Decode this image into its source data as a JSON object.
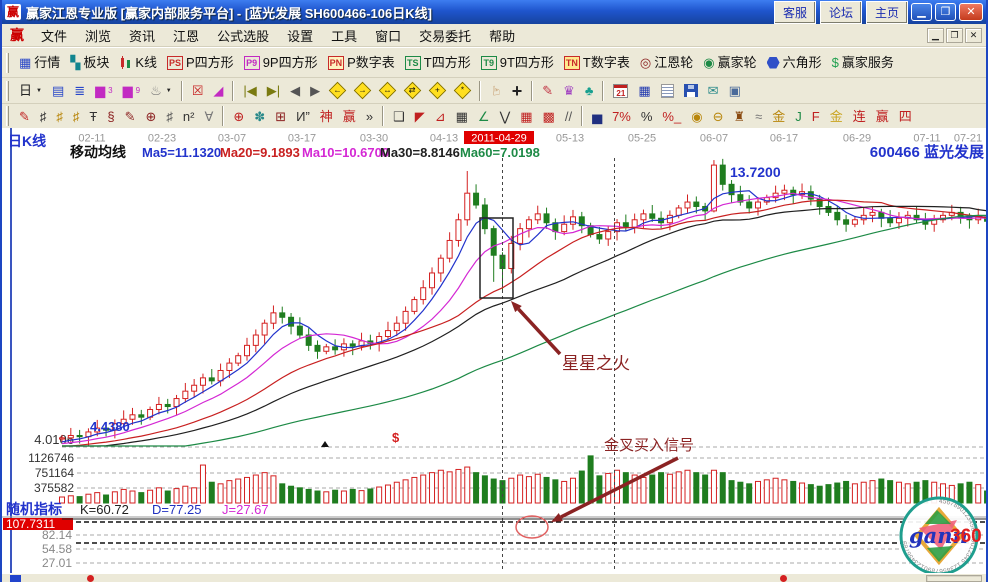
{
  "window": {
    "title": "赢家江恩专业版 [赢家内部服务平台] - [蓝光发展  SH600466-106日K线]",
    "titlebar_buttons": [
      "客服",
      "论坛",
      "主页"
    ],
    "minimize_glyph": "▁",
    "maximize_glyph": "❐",
    "close_glyph": "✕"
  },
  "menu": {
    "logo": "赢",
    "items": [
      "文件",
      "浏览",
      "资讯",
      "江恩",
      "公式选股",
      "设置",
      "工具",
      "窗口",
      "交易委托",
      "帮助"
    ],
    "child_controls": [
      "▁",
      "❐",
      "✕"
    ]
  },
  "toolbar1": {
    "items": [
      {
        "name": "quotes-button",
        "label": "行情",
        "icon": "quotes-table-icon",
        "glyph": "▦",
        "color": "#2947c8"
      },
      {
        "name": "sectors-button",
        "label": "板块",
        "icon": "sectors-icon",
        "glyph": "▚",
        "color": "#11858f"
      },
      {
        "name": "kline-button",
        "label": "K线",
        "icon": "kline-icon",
        "type": "kline"
      },
      {
        "name": "p-square-button",
        "label": "P四方形",
        "icon": "ps-icon",
        "box": "PS",
        "color": "#c82a2a"
      },
      {
        "name": "p9-square-button",
        "label": "9P四方形",
        "icon": "p9-icon",
        "box": "P9",
        "color": "#c22ac2"
      },
      {
        "name": "p-number-button",
        "label": "P数字表",
        "icon": "pn-icon",
        "box": "PN",
        "color": "#c82a2a",
        "bg": "#fff3c0"
      },
      {
        "name": "t-square-button",
        "label": "T四方形",
        "icon": "ts-icon",
        "box": "TS",
        "color": "#1d8a46"
      },
      {
        "name": "t9-square-button",
        "label": "9T四方形",
        "icon": "t9-icon",
        "box": "T9",
        "color": "#1d8a46"
      },
      {
        "name": "t-number-button",
        "label": "T数字表",
        "icon": "tn-icon",
        "box": "TN",
        "color": "#c82a2a",
        "bg": "#ffe98e"
      },
      {
        "name": "gann-wheel-button",
        "label": "江恩轮",
        "icon": "gann-wheel-icon",
        "glyph": "◎",
        "color": "#8a1f1f"
      },
      {
        "name": "winner-wheel-button",
        "label": "赢家轮",
        "icon": "winner-wheel-icon",
        "glyph": "◉",
        "color": "#1d8a46"
      },
      {
        "name": "hexagon-button",
        "label": "六角形",
        "icon": "hexagon-icon",
        "type": "hex"
      },
      {
        "name": "winner-service-button",
        "label": "赢家服务",
        "icon": "dollar-icon",
        "glyph": "$",
        "color": "#21a050"
      }
    ]
  },
  "toolbar2": {
    "items": [
      {
        "name": "chart-type-button",
        "icon": "candle-period-icon",
        "glyph": "日",
        "color": "#222",
        "caret": true
      },
      {
        "name": "window-layout-button",
        "icon": "tiled-windows-icon",
        "glyph": "▤",
        "color": "#2947c8"
      },
      {
        "name": "info-list-button",
        "icon": "list-icon",
        "glyph": "≣",
        "color": "#2947c8"
      },
      {
        "name": "bars3-button",
        "icon": "bars3-icon",
        "glyph": "▆",
        "sub": "3",
        "color": "#c22ac2"
      },
      {
        "name": "bars9-button",
        "icon": "bars9-icon",
        "glyph": "▆",
        "sub": "9",
        "color": "#c22ac2"
      },
      {
        "name": "flask-button",
        "icon": "flask-icon",
        "glyph": "♨",
        "color": "#777",
        "caret": true
      },
      {
        "sep": true
      },
      {
        "name": "compare-button",
        "icon": "cross-red-icon",
        "glyph": "☒",
        "color": "#c82a2a"
      },
      {
        "name": "color-chart-button",
        "icon": "color-chart-icon",
        "glyph": "◢",
        "color": "#c22ac2"
      },
      {
        "sep": true
      },
      {
        "name": "first-page-button",
        "icon": "skip-start-icon",
        "glyph": "|◀",
        "color": "#7a7a10"
      },
      {
        "name": "last-page-button",
        "icon": "skip-end-icon",
        "glyph": "▶|",
        "color": "#7a7a10"
      },
      {
        "name": "prev-button",
        "icon": "back-icon",
        "glyph": "◀",
        "color": "#555"
      },
      {
        "name": "next-button",
        "icon": "forward-icon",
        "glyph": "▶",
        "color": "#555"
      },
      {
        "name": "shift-left-button",
        "icon": "diamond-left-icon",
        "type": "diamond",
        "inner": "←"
      },
      {
        "name": "shift-right-button",
        "icon": "diamond-right-icon",
        "type": "diamond",
        "inner": "→"
      },
      {
        "name": "expand-h-button",
        "icon": "diamond-expand-icon",
        "type": "diamond",
        "inner": "↔"
      },
      {
        "name": "compress-h-button",
        "icon": "diamond-compress-icon",
        "type": "diamond",
        "inner": "⇄"
      },
      {
        "name": "zoom-all-button",
        "icon": "diamond-plus-icon",
        "type": "diamond",
        "inner": "+"
      },
      {
        "name": "reset-view-button",
        "icon": "diamond-star-icon",
        "type": "diamond",
        "inner": "*"
      },
      {
        "sep": true
      },
      {
        "name": "hand-tool-button",
        "icon": "hand-icon",
        "glyph": "☞",
        "color": "#b07030",
        "rot": -90
      },
      {
        "name": "crosshair-button",
        "icon": "crosshair-icon",
        "glyph": "+",
        "color": "#222",
        "big": true
      },
      {
        "sep": true
      },
      {
        "name": "draw-pen-button",
        "icon": "pen-icon",
        "glyph": "✎",
        "color": "#c03040"
      },
      {
        "name": "magic-tool-button",
        "icon": "purple-tool-icon",
        "glyph": "♛",
        "color": "#a040c0"
      },
      {
        "name": "pattern-tool-button",
        "icon": "teal-pattern-icon",
        "glyph": "♣",
        "color": "#18a090"
      },
      {
        "sep": true
      },
      {
        "name": "calendar-button",
        "icon": "calendar-21-icon",
        "type": "calendar",
        "text": "21"
      },
      {
        "name": "calculator-button",
        "icon": "calculator-icon",
        "glyph": "▦",
        "color": "#2038b0"
      },
      {
        "name": "notes-button",
        "icon": "notepad-icon",
        "type": "note"
      },
      {
        "name": "save-button",
        "icon": "floppy-icon",
        "type": "save"
      },
      {
        "name": "mail-button",
        "icon": "mail-icon",
        "glyph": "✉",
        "color": "#2a8a8a"
      },
      {
        "name": "computer-button",
        "icon": "computer-icon",
        "glyph": "▣",
        "color": "#4a6a9a"
      }
    ]
  },
  "toolbar3": {
    "items": [
      {
        "name": "gann-pen-button",
        "icon": "red-pen-icon",
        "glyph": "✎",
        "color": "#c02020"
      },
      {
        "name": "comb-button",
        "icon": "comb-icon",
        "glyph": "♯",
        "color": "#333"
      },
      {
        "name": "gold-comb1-button",
        "icon": "gold-comb-icon",
        "glyph": "♯",
        "color": "#b8860b"
      },
      {
        "name": "gold-comb2-button",
        "icon": "gold-comb2-icon",
        "glyph": "♯",
        "color": "#b8860b"
      },
      {
        "name": "f-grid-button",
        "icon": "f-grid-icon",
        "glyph": "Ŧ",
        "color": "#333"
      },
      {
        "name": "method369-button",
        "icon": "369-icon",
        "glyph": "§",
        "color": "#8a1f1f"
      },
      {
        "name": "pen2-button",
        "icon": "maroon-pen-icon",
        "glyph": "✎",
        "color": "#8a1f1f"
      },
      {
        "name": "circle-grid-button",
        "icon": "circle-grid-icon",
        "glyph": "⊕",
        "color": "#8a1f1f"
      },
      {
        "name": "comb2-button",
        "icon": "comb-dark-icon",
        "glyph": "♯",
        "color": "#555"
      },
      {
        "name": "n2-button",
        "icon": "n-squared-icon",
        "glyph": "n²",
        "color": "#333"
      },
      {
        "name": "a-line-button",
        "icon": "a-line-icon",
        "glyph": "∀",
        "color": "#777"
      },
      {
        "sep": true
      },
      {
        "name": "compass-button",
        "icon": "compass-icon",
        "glyph": "⊕",
        "color": "#c02020"
      },
      {
        "name": "snowflake-button",
        "icon": "snowflake-icon",
        "glyph": "✽",
        "color": "#2a8a8a"
      },
      {
        "name": "web-grid-button",
        "icon": "web-grid-icon",
        "glyph": "⊞",
        "color": "#8a1f1f"
      },
      {
        "name": "yi-button",
        "icon": "yi-icon",
        "glyph": "И”",
        "color": "#333"
      },
      {
        "name": "shen-button",
        "icon": "shen-icon",
        "glyph": "神",
        "color": "#c02020"
      },
      {
        "name": "ying-button",
        "icon": "ying-icon",
        "glyph": "赢",
        "color": "#c02020"
      },
      {
        "name": "more-tools-button",
        "icon": "chevron-more-icon",
        "glyph": "»",
        "color": "#333"
      },
      {
        "sep": true
      },
      {
        "name": "square-tool-button",
        "icon": "square-icon",
        "glyph": "❑",
        "color": "#333"
      },
      {
        "name": "fan-button",
        "icon": "red-fan-icon",
        "glyph": "◤",
        "color": "#c02020"
      },
      {
        "name": "grid-fan-button",
        "icon": "grid-fan-icon",
        "glyph": "⊿",
        "color": "#c02020"
      },
      {
        "name": "black-grid-button",
        "icon": "black-grid-icon",
        "glyph": "▦",
        "color": "#333"
      },
      {
        "name": "green-angle-button",
        "icon": "green-angle-icon",
        "glyph": "∠",
        "color": "#1d8a46"
      },
      {
        "name": "v-lines-button",
        "icon": "v-lines-icon",
        "glyph": "⋁",
        "color": "#333"
      },
      {
        "name": "red-grid-button",
        "icon": "red-grid-icon",
        "glyph": "▦",
        "color": "#c02020"
      },
      {
        "name": "red-grid2-button",
        "icon": "red-grid2-icon",
        "glyph": "▩",
        "color": "#c02020"
      },
      {
        "name": "diag-lines-button",
        "icon": "diagonal-lines-icon",
        "glyph": "//",
        "color": "#555"
      },
      {
        "sep": true
      },
      {
        "name": "hist-button",
        "icon": "histogram-icon",
        "glyph": "▅",
        "color": "#203080"
      },
      {
        "name": "pct7-button",
        "icon": "7-percent-icon",
        "glyph": "7%",
        "color": "#c02020"
      },
      {
        "name": "pct-button",
        "icon": "percent-icon",
        "glyph": "%",
        "color": "#333"
      },
      {
        "name": "pct-line-button",
        "icon": "percent-line-icon",
        "glyph": "%_",
        "color": "#c02020"
      },
      {
        "name": "gold-circle-button",
        "icon": "gold-circle-icon",
        "glyph": "◉",
        "color": "#b8860b"
      },
      {
        "name": "gold-line-button",
        "icon": "gold-line-icon",
        "glyph": "⊖",
        "color": "#b8860b"
      },
      {
        "name": "flask-candle-button",
        "icon": "flask-candle-icon",
        "glyph": "♜",
        "color": "#8a4a10"
      },
      {
        "name": "wave-button",
        "icon": "wave-icon",
        "glyph": "≈",
        "color": "#777"
      },
      {
        "name": "gold-button",
        "icon": "gold-icon",
        "glyph": "金",
        "color": "#b8860b"
      },
      {
        "name": "j-angle-button",
        "icon": "j-angle-icon",
        "glyph": "J",
        "color": "#1d8a46"
      },
      {
        "name": "f-angle-button",
        "icon": "f-angle-icon",
        "glyph": "F",
        "color": "#c02020"
      },
      {
        "name": "gold-angle-button",
        "icon": "gold-angle-icon",
        "glyph": "金",
        "color": "#caa520"
      },
      {
        "name": "speed-angle-button",
        "icon": "speed-angle-icon",
        "glyph": "连",
        "color": "#c02020"
      },
      {
        "name": "win-angle-button",
        "icon": "win-angle-icon",
        "glyph": "赢",
        "color": "#c02020"
      },
      {
        "name": "four-angle-button",
        "icon": "four-angle-icon",
        "glyph": "四",
        "color": "#c02020"
      }
    ]
  },
  "chart": {
    "panel_label": "日K线",
    "stock_label": "600466 蓝光发展",
    "ma_header": {
      "title": "移动均线",
      "items": [
        {
          "label": "Ma5=11.1320",
          "color": "#2233cc"
        },
        {
          "label": "Ma20=9.1893",
          "color": "#c82020"
        },
        {
          "label": "Ma10=10.6700",
          "color": "#d428d4"
        },
        {
          "label": "Ma30=8.8146",
          "color": "#202020"
        },
        {
          "label": "Ma60=7.0198",
          "color": "#1d8a46"
        }
      ]
    },
    "kdj_header": {
      "title": "随机指标",
      "k": "K=60.72",
      "d": "D=77.25",
      "j": "J=27.67"
    },
    "logo": {
      "text1": "gann",
      "text2": "360"
    }
  },
  "chart_data": {
    "type": "candlestick",
    "symbol": "SH600466",
    "name": "蓝光发展",
    "period": "106日K线",
    "dates": [
      "02-11",
      "02-23",
      "03-07",
      "03-17",
      "03-30",
      "04-13",
      "2011-04-29",
      "05-13",
      "05-25",
      "06-07",
      "06-17",
      "06-29",
      "07-11",
      "07-21"
    ],
    "highlight_date": "2011-04-29",
    "highlight_index": 6,
    "price_axis_base_label": "4.0106",
    "annotations": {
      "high_label": "13.7200",
      "start_label": "4.4380",
      "star_fire": "星星之火",
      "golden_cross": "金叉买入信号",
      "dollar": "$"
    },
    "volume_axis_labels": [
      "1126746",
      "751164",
      "375582"
    ],
    "kdj_axis_top_label": "107.7311",
    "kdj_axis_labels": [
      "82.14",
      "54.58",
      "27.01"
    ],
    "ma_values_at_cursor": {
      "Ma5": 11.132,
      "Ma20": 9.1893,
      "Ma10": 10.67,
      "Ma30": 8.8146,
      "Ma60": 7.0198
    },
    "kdj_at_cursor": {
      "K": 60.72,
      "D": 77.25,
      "J": 27.67
    },
    "colors": {
      "up": "#d42020",
      "down": "#1f7d1f",
      "ma5": "#2233cc",
      "ma10": "#d428d4",
      "ma20": "#c82020",
      "ma30": "#202020",
      "ma60": "#1d8a46",
      "k": "#202020",
      "d": "#2030c0",
      "j": "#d428d4",
      "annotation": "#8b2323",
      "cursor": "#444",
      "axis_text": "#333",
      "date_text": "#989898",
      "highlight_bg": "#e00000",
      "label_blue": "#2233cc"
    },
    "first_open": 4.28,
    "closes": [
      4.32,
      4.4,
      4.36,
      4.52,
      4.65,
      4.58,
      4.8,
      4.95,
      5.1,
      5.02,
      5.28,
      5.45,
      5.38,
      5.65,
      5.9,
      6.1,
      6.35,
      6.25,
      6.6,
      6.85,
      7.1,
      7.45,
      7.8,
      8.2,
      8.55,
      8.4,
      8.1,
      7.8,
      7.45,
      7.25,
      7.4,
      7.3,
      7.5,
      7.42,
      7.6,
      7.52,
      7.75,
      7.95,
      8.2,
      8.6,
      9.0,
      9.4,
      9.9,
      10.4,
      11.0,
      11.7,
      12.6,
      12.2,
      11.4,
      10.5,
      10.05,
      10.9,
      11.4,
      11.7,
      11.9,
      11.6,
      11.3,
      11.55,
      11.8,
      11.5,
      11.2,
      11.05,
      11.3,
      11.6,
      11.45,
      11.7,
      11.9,
      11.75,
      11.6,
      11.85,
      12.1,
      12.3,
      12.15,
      12.0,
      13.55,
      12.9,
      12.55,
      12.3,
      12.1,
      12.3,
      12.45,
      12.6,
      12.7,
      12.55,
      12.65,
      12.4,
      12.15,
      11.95,
      11.7,
      11.55,
      11.7,
      11.85,
      11.95,
      11.75,
      11.6,
      11.75,
      11.85,
      11.7,
      11.55,
      11.7,
      11.85,
      11.95,
      11.8,
      11.7,
      11.8,
      11.65
    ],
    "wick_overrides": {
      "24": [
        8.8,
        8.0
      ],
      "46": [
        13.35,
        11.5
      ],
      "49": [
        11.5,
        9.6
      ],
      "50": [
        10.6,
        9.3
      ],
      "74": [
        13.72,
        11.95
      ]
    },
    "volumes_k": [
      150,
      180,
      160,
      220,
      260,
      200,
      280,
      340,
      300,
      260,
      320,
      380,
      300,
      360,
      420,
      380,
      950,
      520,
      480,
      560,
      600,
      640,
      700,
      760,
      680,
      480,
      420,
      380,
      340,
      300,
      280,
      320,
      300,
      340,
      310,
      350,
      400,
      450,
      520,
      580,
      640,
      700,
      760,
      820,
      780,
      840,
      900,
      760,
      680,
      600,
      560,
      620,
      700,
      660,
      720,
      640,
      580,
      540,
      620,
      800,
      1180,
      680,
      740,
      820,
      760,
      700,
      640,
      700,
      760,
      720,
      780,
      820,
      760,
      700,
      820,
      760,
      560,
      520,
      480,
      540,
      580,
      620,
      580,
      540,
      500,
      460,
      420,
      460,
      500,
      540,
      480,
      520,
      560,
      600,
      560,
      520,
      480,
      520,
      560,
      520,
      480,
      440,
      480,
      520,
      460,
      300
    ],
    "kdj_k_series": [
      80,
      84,
      86,
      88,
      90,
      91,
      92,
      90,
      88,
      82,
      75,
      80,
      86,
      88,
      87,
      84,
      90,
      88,
      85,
      86,
      88,
      90,
      92,
      91,
      90,
      82,
      70,
      62,
      55,
      57,
      60,
      66,
      72,
      68,
      65,
      70,
      75,
      80,
      85,
      88,
      90,
      92,
      93,
      94,
      95,
      96,
      96,
      88,
      75,
      66,
      60.72,
      58,
      62,
      70,
      78,
      82,
      78,
      72,
      75,
      70,
      65,
      60,
      63,
      68,
      66,
      68,
      70,
      67,
      64,
      68,
      72,
      75,
      78,
      82,
      88,
      85,
      75,
      65,
      55,
      45,
      38,
      30,
      25,
      22,
      25,
      20,
      18,
      22,
      20,
      25,
      35,
      48,
      60,
      70,
      80,
      88,
      92,
      90,
      85,
      80,
      72,
      65,
      55,
      45,
      35,
      28
    ]
  }
}
